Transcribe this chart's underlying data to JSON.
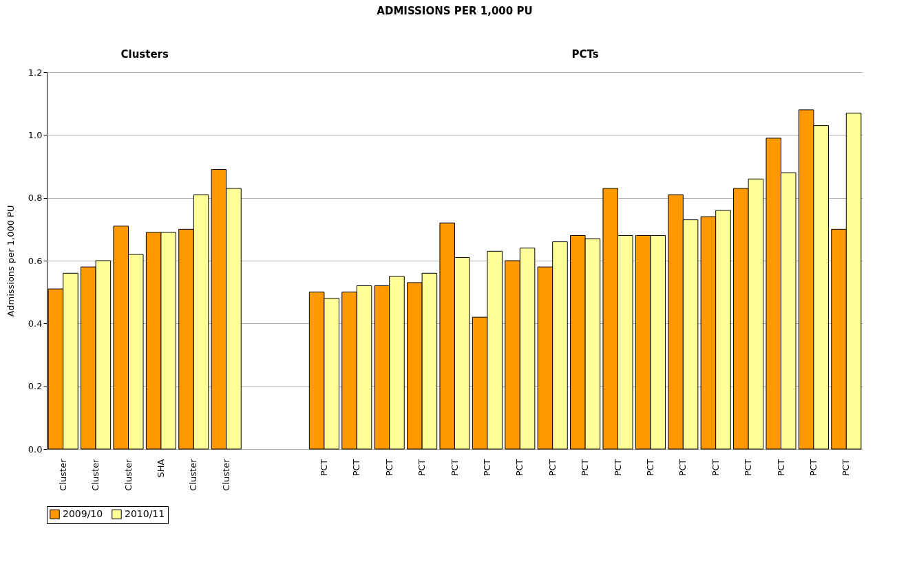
{
  "chart_data": {
    "type": "bar",
    "title": "ADMISSIONS PER 1,000 PU",
    "ylabel": "Admissions per 1,000 PU",
    "annotations": [
      "Clusters",
      "PCTs"
    ],
    "categories": [
      "Cluster",
      "Cluster",
      "Cluster",
      "SHA",
      "Cluster",
      "Cluster",
      null,
      null,
      "PCT",
      "PCT",
      "PCT",
      "PCT",
      "PCT",
      "PCT",
      "PCT",
      "PCT",
      "PCT",
      "PCT",
      "PCT",
      "PCT",
      "PCT",
      "PCT",
      "PCT",
      "PCT",
      "PCT"
    ],
    "series": [
      {
        "name": "2009/10",
        "color": "#ff9900",
        "values": [
          0.51,
          0.58,
          0.71,
          0.69,
          0.7,
          0.89,
          null,
          null,
          0.5,
          0.5,
          0.52,
          0.53,
          0.72,
          0.42,
          0.6,
          0.58,
          0.68,
          0.83,
          0.68,
          0.81,
          0.74,
          0.83,
          0.99,
          1.08,
          0.7
        ]
      },
      {
        "name": "2010/11",
        "color": "#ffff99",
        "values": [
          0.56,
          0.6,
          0.62,
          0.69,
          0.81,
          0.83,
          null,
          null,
          0.48,
          0.52,
          0.55,
          0.56,
          0.61,
          0.63,
          0.64,
          0.66,
          0.67,
          0.68,
          0.68,
          0.73,
          0.76,
          0.86,
          0.88,
          1.03,
          1.07
        ]
      }
    ],
    "ylim": [
      0,
      1.2
    ],
    "yticks": [
      {
        "value": 0,
        "label": "0.0"
      },
      0.2,
      0.4,
      0.6,
      0.8,
      {
        "value": 1,
        "label": "1.0"
      },
      1.2
    ],
    "grid": "y",
    "legend": "bottom"
  }
}
